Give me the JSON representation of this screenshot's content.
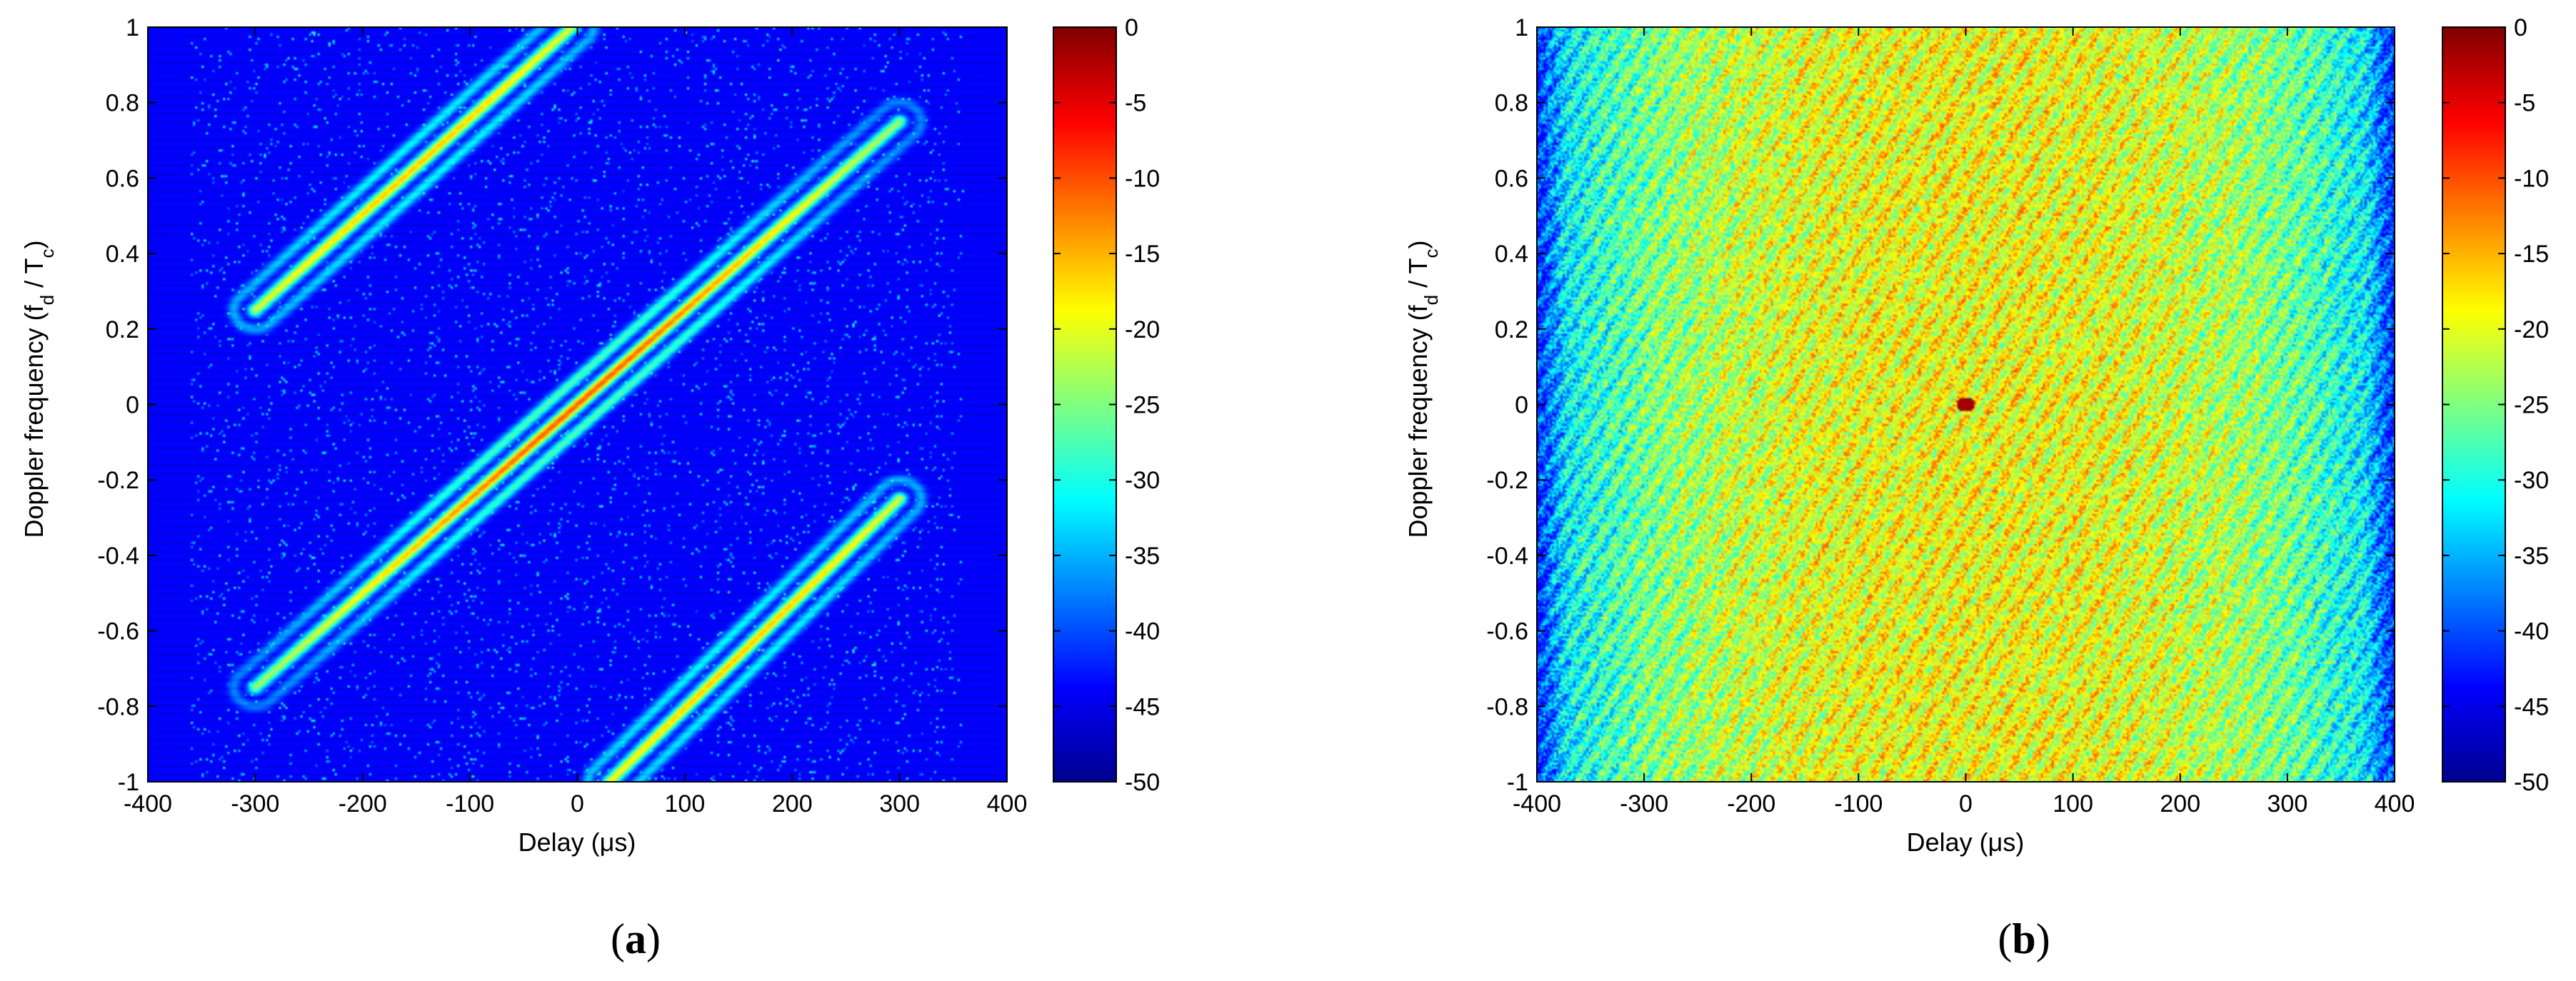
{
  "chart_data": [
    {
      "type": "heatmap",
      "panel_label": "(a)",
      "panel_letter": "a",
      "xlabel": "Delay (μs)",
      "ylabel": "Doppler frequency (f_d / T_c)",
      "xlim": [
        -400,
        400
      ],
      "ylim": [
        -1,
        1
      ],
      "x_ticks": [
        -400,
        -300,
        -200,
        -100,
        0,
        100,
        200,
        300,
        400
      ],
      "y_ticks": [
        -1,
        -0.8,
        -0.6,
        -0.4,
        -0.2,
        0,
        0.2,
        0.4,
        0.6,
        0.8,
        1
      ],
      "colorbar": {
        "ticks": [
          0,
          -5,
          -10,
          -15,
          -20,
          -25,
          -30,
          -35,
          -40,
          -45,
          -50
        ],
        "range": [
          -50,
          0
        ],
        "colormap": "jet"
      },
      "background_level": -50,
      "ridges": [
        {
          "x_start": -300,
          "y_start": 0.25,
          "x_end": -5,
          "y_end": 1.0,
          "peak_x": -150,
          "peak_level": -18
        },
        {
          "x_start": -300,
          "y_start": -0.75,
          "x_end": 300,
          "y_end": 0.75,
          "peak_x": 0,
          "peak_level": -12
        },
        {
          "x_start": 30,
          "y_start": -1.0,
          "x_end": 300,
          "y_end": -0.25,
          "peak_x": 150,
          "peak_level": -18
        }
      ]
    },
    {
      "type": "heatmap",
      "panel_label": "(b)",
      "panel_letter": "b",
      "xlabel": "Delay (μs)",
      "ylabel": "Doppler frequency (f_d / T_c)",
      "xlim": [
        -400,
        400
      ],
      "ylim": [
        -1,
        1
      ],
      "x_ticks": [
        -400,
        -300,
        -200,
        -100,
        0,
        100,
        200,
        300,
        400
      ],
      "y_ticks": [
        -1,
        -0.8,
        -0.6,
        -0.4,
        -0.2,
        0,
        0.2,
        0.4,
        0.6,
        0.8,
        1
      ],
      "colorbar": {
        "ticks": [
          0,
          -5,
          -10,
          -15,
          -20,
          -25,
          -30,
          -35,
          -40,
          -45,
          -50
        ],
        "range": [
          -50,
          0
        ],
        "colormap": "jet"
      },
      "noise_floor_center": -22,
      "noise_floor_edge": -40,
      "peak": {
        "x": 0,
        "y": 0,
        "level": -2
      }
    }
  ],
  "colors": {
    "axis": "#000000",
    "background": "#ffffff"
  }
}
